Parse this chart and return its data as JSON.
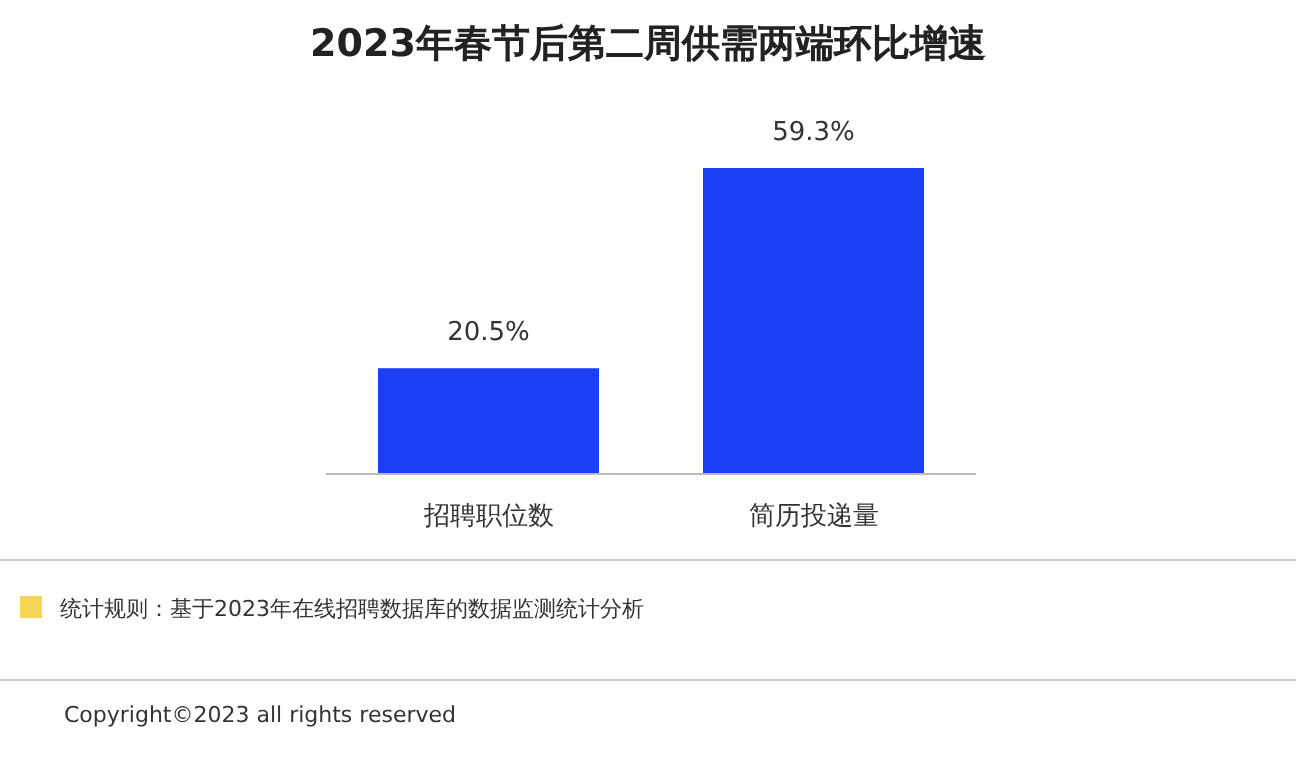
{
  "chart_data": {
    "type": "bar",
    "title": "2023年春节后第二周供需两端环比增速",
    "categories": [
      "招聘职位数",
      "简历投递量"
    ],
    "values": [
      20.5,
      59.3
    ],
    "color": "#1b3ff2",
    "value_labels": [
      "20.5%",
      "59.3%"
    ],
    "annotations": [
      "统计规则：基于2023年在线招聘数据库的数据监测统计分析",
      "Copyright©2023 all rights reserved"
    ]
  }
}
